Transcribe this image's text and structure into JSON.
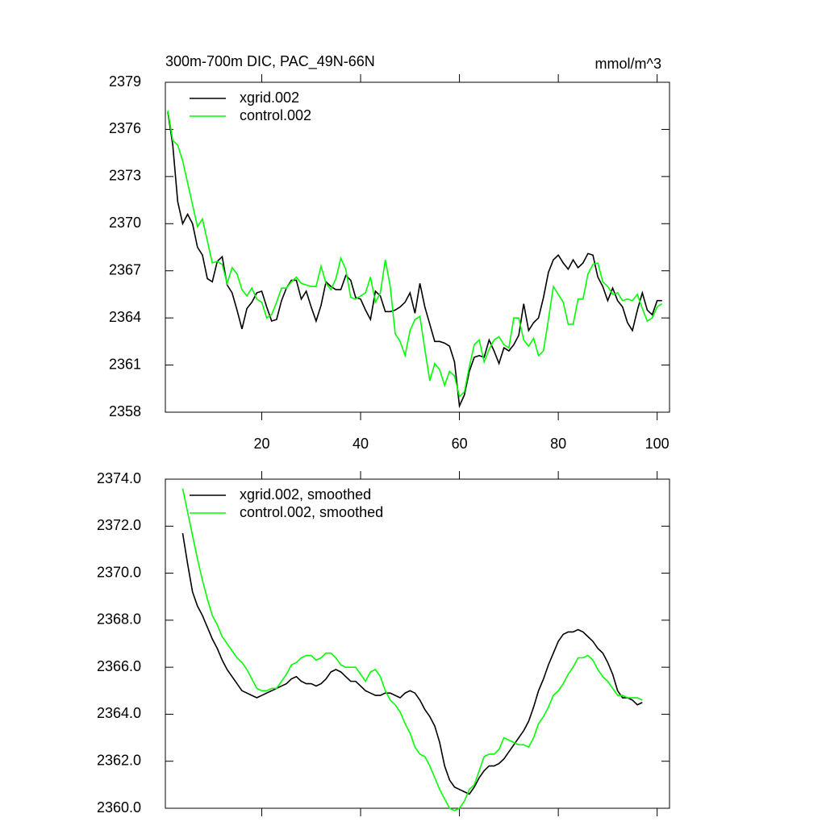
{
  "chart_data": [
    {
      "type": "line",
      "title": "300m-700m DIC, PAC_49N-66N",
      "units": "mmol/m^3",
      "x": [
        1,
        2,
        3,
        4,
        5,
        6,
        7,
        8,
        9,
        10,
        11,
        12,
        13,
        14,
        15,
        16,
        17,
        18,
        19,
        20,
        21,
        22,
        23,
        24,
        25,
        26,
        27,
        28,
        29,
        30,
        31,
        32,
        33,
        34,
        35,
        36,
        37,
        38,
        39,
        40,
        41,
        42,
        43,
        44,
        45,
        46,
        47,
        48,
        49,
        50,
        51,
        52,
        53,
        54,
        55,
        56,
        57,
        58,
        59,
        60,
        61,
        62,
        63,
        64,
        65,
        66,
        67,
        68,
        69,
        70,
        71,
        72,
        73,
        74,
        75,
        76,
        77,
        78,
        79,
        80,
        81,
        82,
        83,
        84,
        85,
        86,
        87,
        88,
        89,
        90,
        91,
        92,
        93,
        94,
        95,
        96,
        97,
        98,
        99,
        100,
        101
      ],
      "series": [
        {
          "name": "xgrid.002",
          "color": "#000000",
          "values": [
            2377.1,
            2375.0,
            2371.4,
            2370.0,
            2370.6,
            2370.0,
            2368.5,
            2368.0,
            2366.5,
            2366.3,
            2367.6,
            2367.9,
            2366.1,
            2365.6,
            2364.5,
            2363.3,
            2364.6,
            2365.0,
            2365.6,
            2365.7,
            2364.7,
            2363.8,
            2363.9,
            2365.1,
            2365.9,
            2366.4,
            2366.4,
            2365.2,
            2365.7,
            2364.7,
            2363.8,
            2364.8,
            2366.3,
            2366.0,
            2365.8,
            2365.8,
            2366.7,
            2366.4,
            2365.3,
            2365.2,
            2364.5,
            2363.9,
            2365.7,
            2365.4,
            2364.4,
            2364.4,
            2364.5,
            2364.7,
            2365.0,
            2365.6,
            2364.3,
            2366.2,
            2364.7,
            2363.6,
            2362.5,
            2362.5,
            2362.4,
            2362.2,
            2361.2,
            2358.4,
            2359.1,
            2360.6,
            2361.5,
            2361.6,
            2361.5,
            2362.6,
            2361.9,
            2361.1,
            2362.1,
            2361.9,
            2362.3,
            2362.9,
            2364.9,
            2363.2,
            2363.7,
            2364.0,
            2365.3,
            2366.9,
            2367.7,
            2368.0,
            2367.5,
            2367.1,
            2367.7,
            2367.2,
            2367.5,
            2368.1,
            2368.0,
            2366.6,
            2366.0,
            2365.1,
            2365.9,
            2365.1,
            2364.7,
            2363.7,
            2363.2,
            2364.5,
            2365.6,
            2364.5,
            2364.2,
            2365.1,
            2365.1
          ]
        },
        {
          "name": "control.002",
          "color": "#00ff00",
          "values": [
            2377.2,
            2375.3,
            2375.0,
            2374.0,
            2372.6,
            2371.2,
            2369.8,
            2370.3,
            2368.9,
            2367.5,
            2367.6,
            2367.4,
            2366.2,
            2367.2,
            2366.8,
            2365.8,
            2365.4,
            2365.9,
            2365.2,
            2365.0,
            2364.0,
            2364.2,
            2365.0,
            2365.9,
            2365.9,
            2366.3,
            2366.6,
            2366.2,
            2366.1,
            2366.0,
            2366.0,
            2367.3,
            2366.2,
            2365.8,
            2366.5,
            2367.8,
            2367.1,
            2365.3,
            2365.2,
            2365.4,
            2365.6,
            2366.6,
            2365.0,
            2365.6,
            2367.7,
            2366.0,
            2363.0,
            2362.5,
            2361.6,
            2363.2,
            2363.9,
            2364.1,
            2362.0,
            2360.0,
            2361.1,
            2360.7,
            2359.7,
            2360.6,
            2360.3,
            2359.0,
            2359.3,
            2360.9,
            2362.3,
            2362.6,
            2361.2,
            2362.0,
            2362.6,
            2362.8,
            2362.3,
            2362.1,
            2364.0,
            2364.0,
            2362.6,
            2362.2,
            2362.7,
            2361.6,
            2361.9,
            2363.9,
            2366.0,
            2365.5,
            2365.0,
            2363.6,
            2363.6,
            2365.2,
            2365.2,
            2366.8,
            2367.4,
            2367.5,
            2366.3,
            2366.0,
            2365.5,
            2365.6,
            2365.1,
            2365.2,
            2365.1,
            2365.5,
            2364.6,
            2363.8,
            2364.0,
            2364.7,
            2364.9
          ]
        }
      ],
      "xlim": [
        0.5,
        102.5
      ],
      "ylim": [
        2358,
        2379
      ],
      "xticks": [
        20,
        40,
        60,
        80,
        100
      ],
      "yticks": [
        2358,
        2361,
        2364,
        2367,
        2370,
        2373,
        2376,
        2379
      ],
      "show_xtick_labels": true,
      "legend": "upper left"
    },
    {
      "type": "line",
      "x": [
        4,
        5,
        6,
        7,
        8,
        9,
        10,
        11,
        12,
        13,
        14,
        15,
        16,
        17,
        18,
        19,
        20,
        21,
        22,
        23,
        24,
        25,
        26,
        27,
        28,
        29,
        30,
        31,
        32,
        33,
        34,
        35,
        36,
        37,
        38,
        39,
        40,
        41,
        42,
        43,
        44,
        45,
        46,
        47,
        48,
        49,
        50,
        51,
        52,
        53,
        54,
        55,
        56,
        57,
        58,
        59,
        60,
        61,
        62,
        63,
        64,
        65,
        66,
        67,
        68,
        69,
        70,
        71,
        72,
        73,
        74,
        75,
        76,
        77,
        78,
        79,
        80,
        81,
        82,
        83,
        84,
        85,
        86,
        87,
        88,
        89,
        90,
        91,
        92,
        93,
        94,
        95,
        96,
        97
      ],
      "series": [
        {
          "name": "xgrid.002, smoothed",
          "color": "#000000",
          "values": [
            2371.7,
            2370.4,
            2369.2,
            2368.6,
            2368.2,
            2367.7,
            2367.2,
            2366.8,
            2366.3,
            2365.9,
            2365.6,
            2365.3,
            2365.0,
            2364.9,
            2364.8,
            2364.7,
            2364.8,
            2364.9,
            2365.0,
            2365.1,
            2365.2,
            2365.3,
            2365.5,
            2365.6,
            2365.4,
            2365.3,
            2365.3,
            2365.2,
            2365.3,
            2365.5,
            2365.8,
            2365.9,
            2365.8,
            2365.6,
            2365.4,
            2365.4,
            2365.2,
            2365.0,
            2364.9,
            2364.8,
            2364.8,
            2364.9,
            2364.9,
            2364.8,
            2364.7,
            2364.9,
            2365.0,
            2364.9,
            2364.6,
            2364.2,
            2363.9,
            2363.5,
            2362.8,
            2361.8,
            2361.2,
            2360.9,
            2360.8,
            2360.7,
            2360.6,
            2360.9,
            2361.3,
            2361.6,
            2361.8,
            2361.8,
            2361.9,
            2362.1,
            2362.4,
            2362.7,
            2363.0,
            2363.3,
            2363.7,
            2364.3,
            2365.0,
            2365.5,
            2366.1,
            2366.6,
            2367.1,
            2367.4,
            2367.5,
            2367.5,
            2367.6,
            2367.5,
            2367.3,
            2367.1,
            2366.8,
            2366.6,
            2366.2,
            2365.7,
            2365.0,
            2364.7,
            2364.7,
            2364.6,
            2364.4,
            2364.5
          ]
        },
        {
          "name": "control.002, smoothed",
          "color": "#00ff00",
          "values": [
            2373.6,
            2372.6,
            2371.6,
            2370.6,
            2369.7,
            2368.9,
            2368.2,
            2367.8,
            2367.3,
            2367.0,
            2366.7,
            2366.4,
            2366.2,
            2365.9,
            2365.5,
            2365.1,
            2365.0,
            2365.0,
            2365.1,
            2365.1,
            2365.4,
            2365.7,
            2366.1,
            2366.2,
            2366.4,
            2366.5,
            2366.5,
            2366.3,
            2366.4,
            2366.6,
            2366.6,
            2366.4,
            2366.1,
            2366.0,
            2366.0,
            2366.0,
            2365.7,
            2365.4,
            2365.8,
            2365.9,
            2365.6,
            2365.0,
            2364.6,
            2364.4,
            2364.1,
            2363.6,
            2363.2,
            2362.6,
            2362.3,
            2362.2,
            2361.8,
            2361.3,
            2360.8,
            2360.4,
            2360.0,
            2359.9,
            2360.0,
            2360.3,
            2360.8,
            2361.0,
            2361.6,
            2362.2,
            2362.3,
            2362.3,
            2362.5,
            2363.0,
            2362.9,
            2362.8,
            2362.7,
            2362.7,
            2362.6,
            2363.0,
            2363.6,
            2363.9,
            2364.3,
            2364.8,
            2365.0,
            2365.3,
            2365.7,
            2366.0,
            2366.4,
            2366.4,
            2366.5,
            2366.3,
            2365.9,
            2365.6,
            2365.4,
            2365.1,
            2364.8,
            2364.8,
            2364.7,
            2364.7,
            2364.7,
            2364.6
          ]
        }
      ],
      "xlim": [
        0.5,
        102.5
      ],
      "ylim": [
        2360,
        2374
      ],
      "xticks": [
        20,
        40,
        60,
        80,
        100
      ],
      "yticks": [
        {
          "value": 2360,
          "label": "2360.0"
        },
        {
          "value": 2362,
          "label": "2362.0"
        },
        {
          "value": 2364,
          "label": "2364.0"
        },
        {
          "value": 2366,
          "label": "2366.0"
        },
        {
          "value": 2368,
          "label": "2368.0"
        },
        {
          "value": 2370,
          "label": "2370.0"
        },
        {
          "value": 2372,
          "label": "2372.0"
        },
        {
          "value": 2374,
          "label": "2374.0"
        }
      ],
      "show_xtick_labels": false,
      "legend": "upper left"
    }
  ]
}
